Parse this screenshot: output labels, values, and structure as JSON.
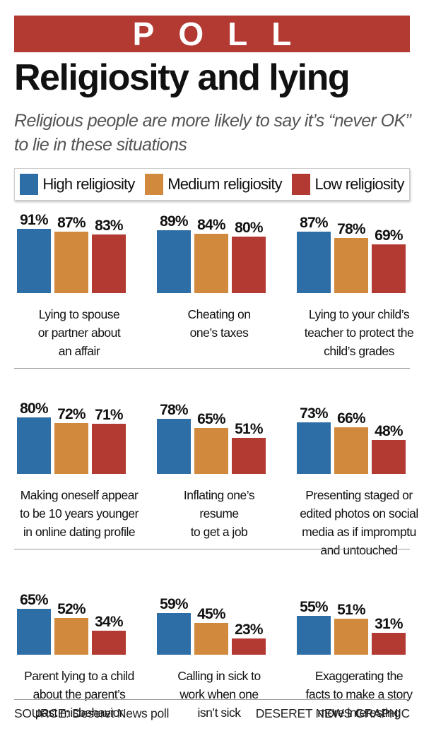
{
  "header": {
    "banner": "POLL",
    "title": "Religiosity and lying",
    "subtitle": "Religious people are more likely to say it’s “never OK” to lie in these situations"
  },
  "colors": {
    "high": "#2e6ea6",
    "medium": "#d18a3d",
    "low": "#b23a33",
    "banner": "#b23a33"
  },
  "legend": [
    {
      "label": "High religiosity",
      "color": "#2e6ea6"
    },
    {
      "label": "Medium religiosity",
      "color": "#d18a3d"
    },
    {
      "label": "Low religiosity",
      "color": "#b23a33"
    }
  ],
  "chart_data": {
    "type": "bar",
    "series_names": [
      "High religiosity",
      "Medium religiosity",
      "Low religiosity"
    ],
    "ylim": [
      0,
      100
    ],
    "grid": false,
    "panels": [
      {
        "label": "Lying to spouse\nor partner about\nan affair",
        "values": [
          91,
          87,
          83
        ]
      },
      {
        "label": "Cheating on\none’s taxes",
        "values": [
          89,
          84,
          80
        ]
      },
      {
        "label": "Lying to your child’s\nteacher to protect the\nchild’s grades",
        "values": [
          87,
          78,
          69
        ]
      },
      {
        "label": "Making oneself appear\nto be 10 years younger\nin online dating profile",
        "values": [
          80,
          72,
          71
        ]
      },
      {
        "label": "Inflating one’s\nresume\nto get a job",
        "values": [
          78,
          65,
          51
        ]
      },
      {
        "label": "Presenting staged or\nedited photos on social\nmedia as if impromptu\nand untouched",
        "values": [
          73,
          66,
          48
        ]
      },
      {
        "label": "Parent lying to a child\nabout the parent’s\npast misbehavior",
        "values": [
          65,
          52,
          34
        ]
      },
      {
        "label": "Calling in sick to\nwork when one\nisn’t sick",
        "values": [
          59,
          45,
          23
        ]
      },
      {
        "label": "Exaggerating the\nfacts to make a story\nmore interesting",
        "values": [
          55,
          51,
          31
        ]
      }
    ]
  },
  "footer": {
    "source": "SOURCE: Deseret News poll",
    "credit": "DESERET NEWS GRAPHIC"
  }
}
